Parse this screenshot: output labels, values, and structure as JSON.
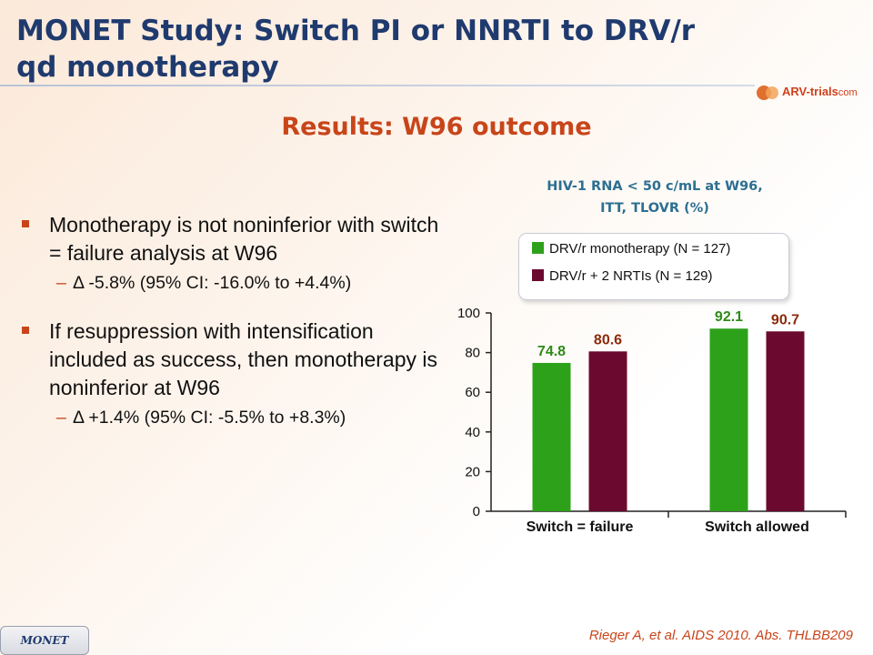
{
  "slide": {
    "title": "MONET Study: Switch PI or NNRTI to DRV/r qd monotherapy",
    "subtitle": "Results: W96 outcome",
    "logo_text_main": "ARV-trials",
    "logo_text_suffix": "com",
    "footer_tag": "MONET",
    "citation": "Rieger A, et al. AIDS 2010. Abs. THLBB209",
    "bullets": [
      {
        "text": "Monotherapy is not noninferior with switch = failure analysis at W96",
        "sub": "Δ -5.8% (95% CI: -16.0% to +4.4%)"
      },
      {
        "text": "If resuppression with intensification included as success, then monotherapy is noninferior at W96",
        "sub": "Δ +1.4% (95% CI: -5.5% to +8.3%)"
      }
    ],
    "colors": {
      "accent": "#c8451a",
      "title": "#1f3a6e",
      "chart_title": "#2c6f91"
    }
  },
  "chart_data": {
    "type": "bar",
    "title_line1": "HIV-1 RNA < 50 c/mL at W96,",
    "title_line2": "ITT, TLOVR (%)",
    "categories": [
      "Switch = failure",
      "Switch allowed"
    ],
    "series": [
      {
        "name": "DRV/r monotherapy (N = 127)",
        "values": [
          74.8,
          92.1
        ],
        "color": "#2ea11b",
        "label_color": "#2e8b18"
      },
      {
        "name": "DRV/r + 2 NRTIs (N = 129)",
        "values": [
          80.6,
          90.7
        ],
        "color": "#6b0a2e",
        "label_color": "#8b2a0a"
      }
    ],
    "y_ticks": [
      0,
      20,
      40,
      60,
      80,
      100
    ],
    "ylim": [
      0,
      100
    ],
    "legend_position": "top"
  }
}
